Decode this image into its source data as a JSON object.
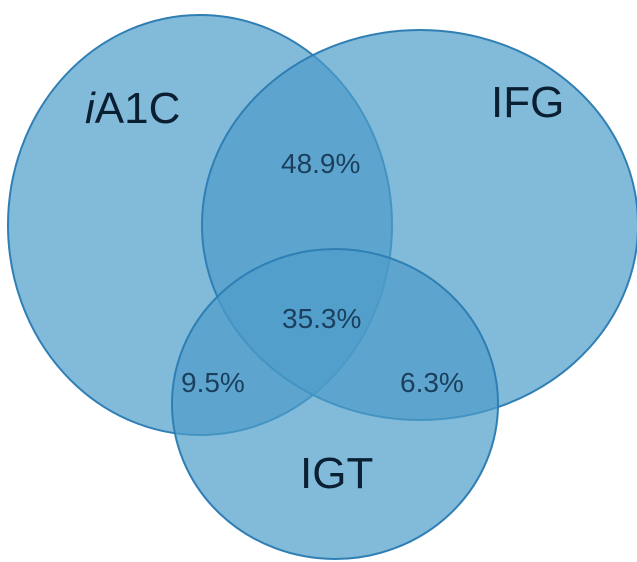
{
  "diagram": {
    "type": "venn",
    "colors": {
      "fill": "#4d9cc9",
      "fill_opacity": 0.7,
      "stroke": "#2f7fb5"
    },
    "sets": [
      {
        "id": "a1c",
        "label_prefix": "i",
        "label_rest": "A1C"
      },
      {
        "id": "ifg",
        "label": "IFG"
      },
      {
        "id": "igt",
        "label": "IGT"
      }
    ],
    "regions": {
      "a1c_ifg": "48.9%",
      "all_three": "35.3%",
      "a1c_igt": "9.5%",
      "ifg_igt": "6.3%"
    }
  }
}
